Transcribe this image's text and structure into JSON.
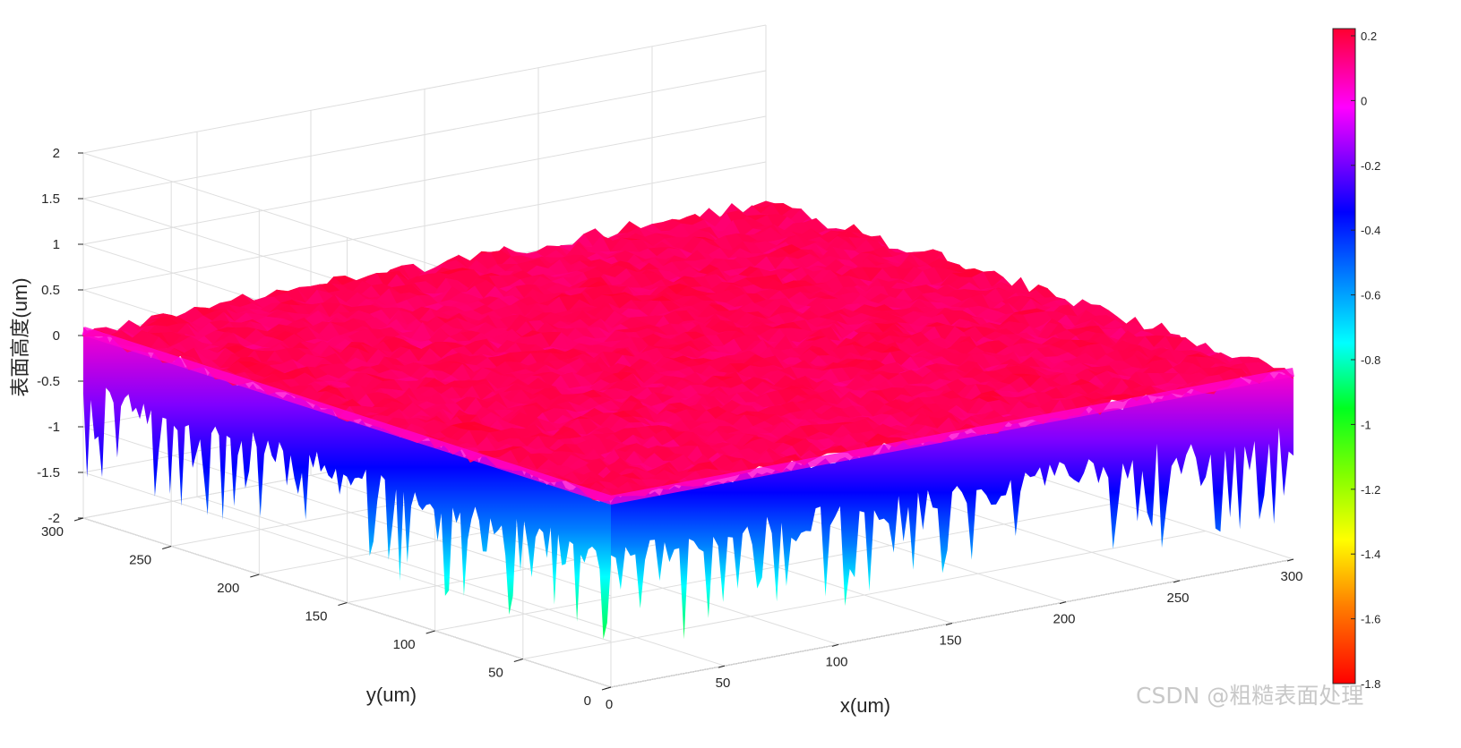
{
  "chart_data": {
    "type": "surface3d",
    "title": "",
    "xlabel": "x(um)",
    "ylabel": "y(um)",
    "zlabel": "表面高度(um)",
    "xlim": [
      0,
      300
    ],
    "ylim": [
      0,
      300
    ],
    "zlim": [
      -2,
      2
    ],
    "x_ticks": [
      "0",
      "50",
      "100",
      "150",
      "200",
      "250",
      "300"
    ],
    "y_ticks": [
      "0",
      "50",
      "100",
      "150",
      "200",
      "250",
      "300"
    ],
    "z_ticks": [
      "-2",
      "-1.5",
      "-1",
      "-0.5",
      "0",
      "0.5",
      "1",
      "1.5",
      "2"
    ],
    "grid": true,
    "surface": {
      "mean_height": 0.05,
      "peak_max": 0.2,
      "valley_min": -1.8,
      "description_of_shape": "flat rough plateau near 0 with sharp downward spikes along the visible edges"
    },
    "colorbar": {
      "colormap": "hsv",
      "range": [
        -1.8,
        0.2
      ],
      "ticks": [
        "0.2",
        "0",
        "-0.2",
        "-0.4",
        "-0.6",
        "-0.8",
        "-1",
        "-1.2",
        "-1.4",
        "-1.6",
        "-1.8"
      ]
    }
  },
  "watermark": "CSDN @粗糙表面处理"
}
